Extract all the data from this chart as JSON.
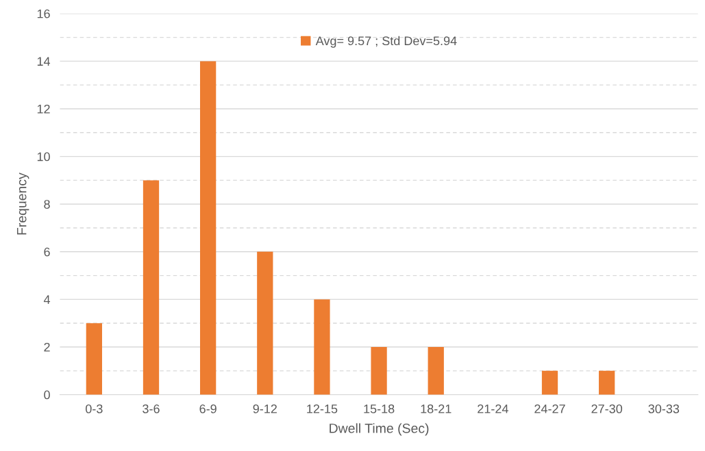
{
  "chart_data": {
    "type": "bar",
    "xlabel": "Dwell Time (Sec)",
    "ylabel": "Frequency",
    "categories": [
      "0-3",
      "3-6",
      "6-9",
      "9-12",
      "12-15",
      "15-18",
      "18-21",
      "21-24",
      "24-27",
      "27-30",
      "30-33"
    ],
    "series": [
      {
        "name": "Avg= 9.57 ; Std Dev=5.94",
        "color": "#ed7d31",
        "values": [
          3,
          9,
          14,
          6,
          4,
          2,
          2,
          0,
          1,
          1,
          0
        ]
      }
    ],
    "ylim": [
      0,
      16
    ],
    "yticks": [
      0,
      {
        "value": 1,
        "label": null
      },
      2,
      {
        "value": 3,
        "label": null
      },
      4,
      {
        "value": 5,
        "label": null
      },
      6,
      {
        "value": 7,
        "label": null
      },
      8,
      {
        "value": 9,
        "label": null
      },
      10,
      {
        "value": 11,
        "label": null
      },
      12,
      {
        "value": 13,
        "label": null
      },
      14,
      {
        "value": 15,
        "label": null
      },
      16
    ],
    "grid": "y",
    "legend": "top"
  }
}
